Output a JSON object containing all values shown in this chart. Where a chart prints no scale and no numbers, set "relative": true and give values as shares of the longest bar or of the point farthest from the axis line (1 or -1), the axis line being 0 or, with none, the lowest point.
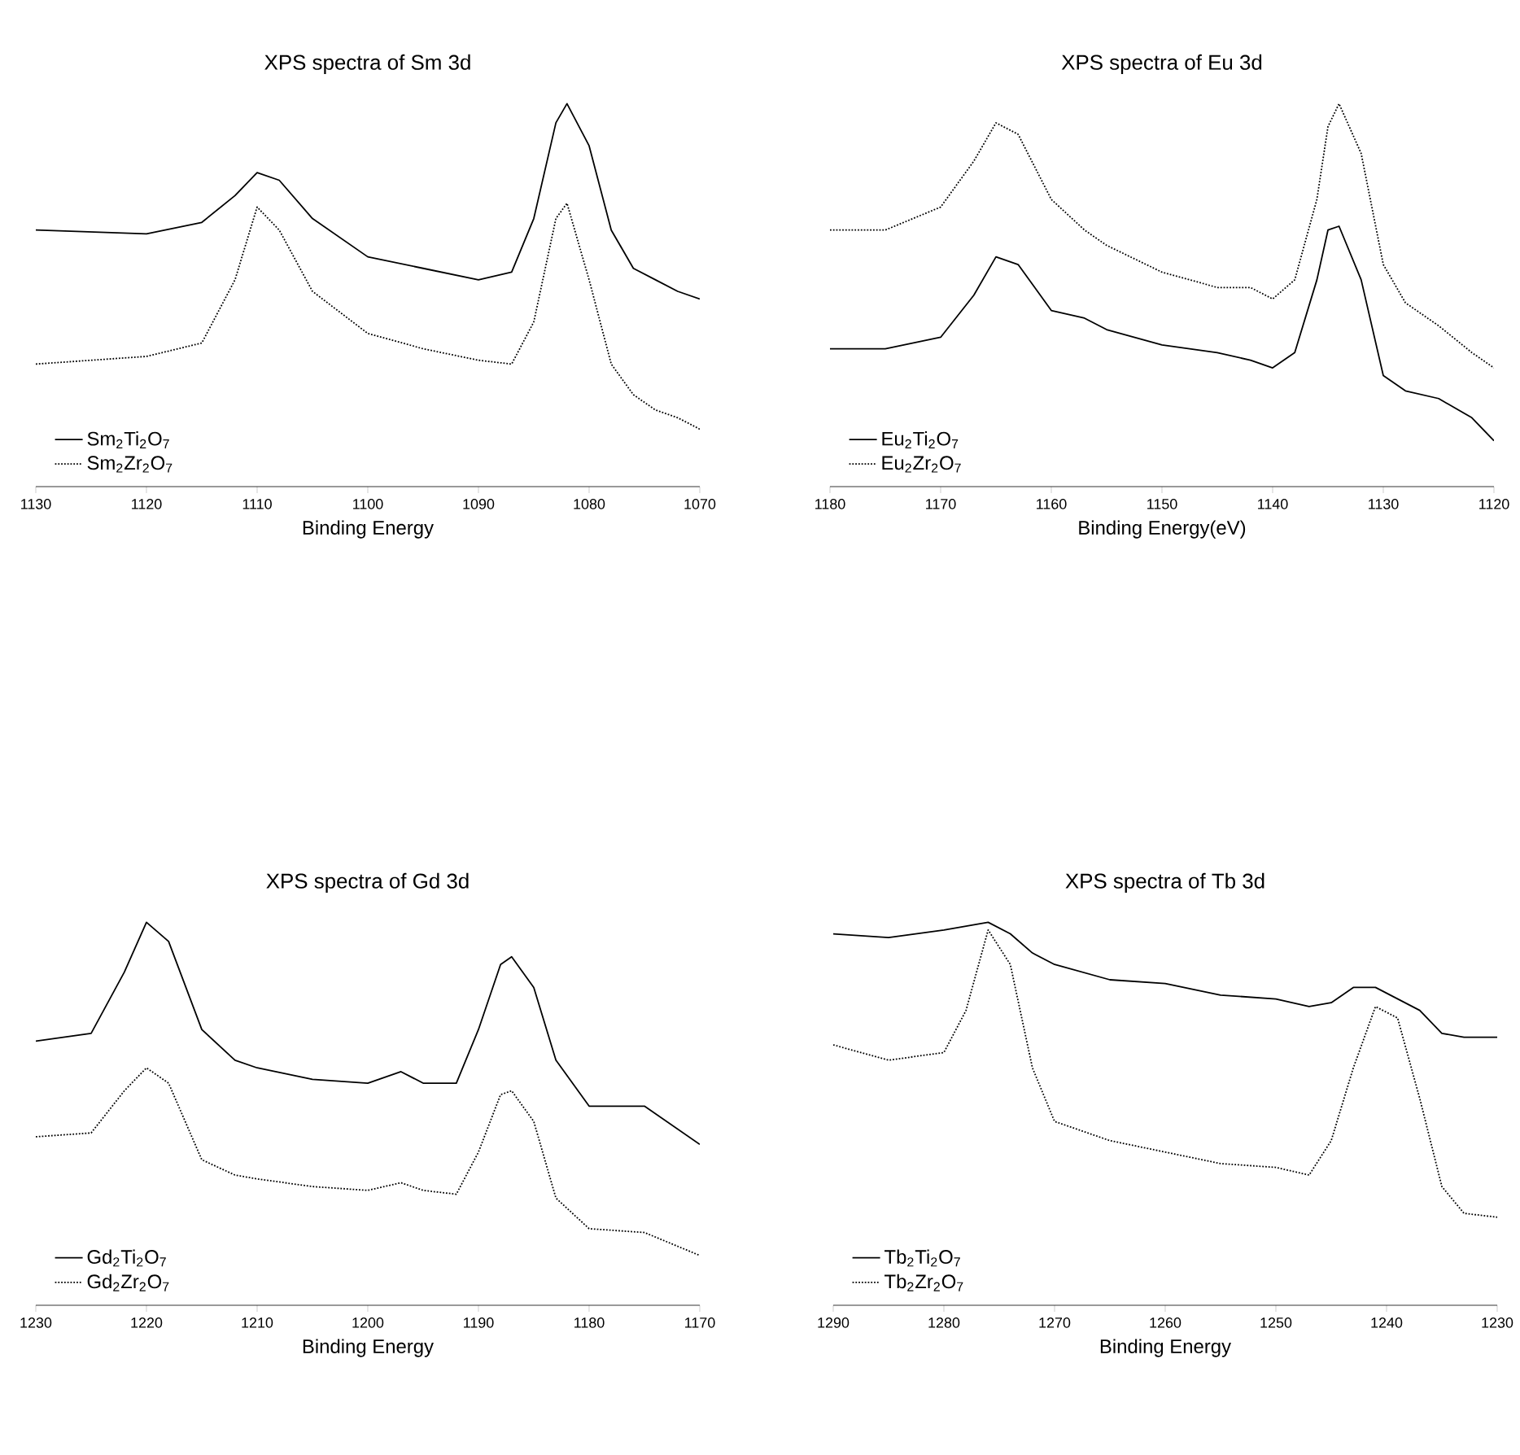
{
  "chart_data": [
    {
      "type": "line",
      "title": "XPS spectra of Sm 3d",
      "xlabel": "Binding Energy",
      "relative": true,
      "legend": "bottom left",
      "marker": "none",
      "xlim": [
        1130,
        1070
      ],
      "xticks": [
        1130,
        1120,
        1110,
        1100,
        1090,
        1080,
        1070
      ],
      "x": [
        1130,
        1120,
        1115,
        1112,
        1110,
        1108,
        1105,
        1100,
        1095,
        1090,
        1087,
        1085,
        1083,
        1082,
        1080,
        1078,
        1076,
        1074,
        1072,
        1070
      ],
      "series": [
        {
          "name": "Sm$_{2}$Ti$_{2}$O$_{7}$",
          "color": "#000000",
          "line_style": "solid",
          "values": [
            0.67,
            0.66,
            0.69,
            0.76,
            0.82,
            0.8,
            0.7,
            0.6,
            0.57,
            0.54,
            0.56,
            0.7,
            0.95,
            1.0,
            0.89,
            0.67,
            0.57,
            0.54,
            0.51,
            0.49
          ]
        },
        {
          "name": "Sm$_{2}$Zr$_{2}$O$_{7}$",
          "color": "#000000",
          "line_style": "dotted",
          "values": [
            0.32,
            0.34,
            0.375,
            0.54,
            0.73,
            0.67,
            0.51,
            0.4,
            0.36,
            0.33,
            0.32,
            0.43,
            0.7,
            0.74,
            0.54,
            0.32,
            0.24,
            0.2,
            0.18,
            0.15
          ]
        }
      ]
    },
    {
      "type": "line",
      "title": "XPS spectra of Eu 3d",
      "xlabel": "Binding Energy(eV)",
      "relative": true,
      "legend": "bottom left",
      "marker": "none",
      "xlim": [
        1180,
        1120
      ],
      "xticks": [
        1180,
        1170,
        1160,
        1150,
        1140,
        1130,
        1120
      ],
      "x": [
        1180,
        1175,
        1170,
        1167,
        1165,
        1163,
        1160,
        1157,
        1155,
        1150,
        1145,
        1142,
        1140,
        1138,
        1136,
        1135,
        1134,
        1132,
        1130,
        1128,
        1125,
        1122,
        1120
      ],
      "series": [
        {
          "name": "Eu$_{2}$Ti$_{2}$O$_{7}$",
          "color": "#000000",
          "line_style": "solid",
          "values": [
            0.36,
            0.36,
            0.39,
            0.5,
            0.6,
            0.58,
            0.46,
            0.44,
            0.41,
            0.37,
            0.35,
            0.33,
            0.31,
            0.35,
            0.54,
            0.67,
            0.68,
            0.54,
            0.29,
            0.25,
            0.23,
            0.18,
            0.12
          ]
        },
        {
          "name": "Eu$_{2}$Zr$_{2}$O$_{7}$",
          "color": "#000000",
          "line_style": "dotted",
          "values": [
            0.67,
            0.67,
            0.73,
            0.85,
            0.95,
            0.92,
            0.75,
            0.67,
            0.63,
            0.56,
            0.52,
            0.52,
            0.49,
            0.54,
            0.75,
            0.94,
            1.0,
            0.87,
            0.58,
            0.48,
            0.42,
            0.35,
            0.31
          ]
        }
      ]
    },
    {
      "type": "line",
      "title": "XPS spectra of Gd 3d",
      "xlabel": "Binding Energy",
      "relative": true,
      "legend": "bottom left",
      "marker": "none",
      "xlim": [
        1230,
        1170
      ],
      "xticks": [
        1230,
        1220,
        1210,
        1200,
        1190,
        1180,
        1170
      ],
      "x": [
        1230,
        1225,
        1222,
        1220,
        1218,
        1215,
        1212,
        1210,
        1205,
        1200,
        1197,
        1195,
        1192,
        1190,
        1188,
        1187,
        1185,
        1183,
        1180,
        1175,
        1170
      ],
      "series": [
        {
          "name": "Gd$_{2}$Ti$_{2}$O$_{7}$",
          "color": "#000000",
          "line_style": "solid",
          "values": [
            0.69,
            0.71,
            0.87,
            1.0,
            0.95,
            0.72,
            0.64,
            0.62,
            0.59,
            0.58,
            0.61,
            0.58,
            0.58,
            0.72,
            0.89,
            0.91,
            0.83,
            0.64,
            0.52,
            0.52,
            0.42
          ]
        },
        {
          "name": "Gd$_{2}$Zr$_{2}$O$_{7}$",
          "color": "#000000",
          "line_style": "dotted",
          "values": [
            0.44,
            0.45,
            0.56,
            0.62,
            0.58,
            0.38,
            0.34,
            0.33,
            0.31,
            0.3,
            0.32,
            0.3,
            0.29,
            0.4,
            0.55,
            0.56,
            0.48,
            0.28,
            0.2,
            0.19,
            0.13
          ]
        }
      ]
    },
    {
      "type": "line",
      "title": "XPS spectra of Tb 3d",
      "xlabel": "Binding Energy",
      "relative": true,
      "legend": "bottom left",
      "marker": "none",
      "xlim": [
        1290,
        1230
      ],
      "xticks": [
        1290,
        1280,
        1270,
        1260,
        1250,
        1240,
        1230
      ],
      "x": [
        1290,
        1285,
        1280,
        1278,
        1276,
        1274,
        1272,
        1270,
        1265,
        1260,
        1255,
        1250,
        1247,
        1245,
        1243,
        1241,
        1239,
        1237,
        1235,
        1233,
        1230
      ],
      "series": [
        {
          "name": "Tb$_{2}$Ti$_{2}$O$_{7}$",
          "color": "#000000",
          "line_style": "solid",
          "values": [
            0.97,
            0.96,
            0.98,
            0.99,
            1.0,
            0.97,
            0.92,
            0.89,
            0.85,
            0.84,
            0.81,
            0.8,
            0.78,
            0.79,
            0.83,
            0.83,
            0.8,
            0.77,
            0.71,
            0.7,
            0.7
          ]
        },
        {
          "name": "Tb$_{2}$Zr$_{2}$O$_{7}$",
          "color": "#000000",
          "line_style": "dotted",
          "values": [
            0.68,
            0.64,
            0.66,
            0.77,
            0.98,
            0.89,
            0.62,
            0.48,
            0.43,
            0.4,
            0.37,
            0.36,
            0.34,
            0.43,
            0.62,
            0.78,
            0.75,
            0.54,
            0.31,
            0.24,
            0.23
          ]
        }
      ]
    }
  ]
}
